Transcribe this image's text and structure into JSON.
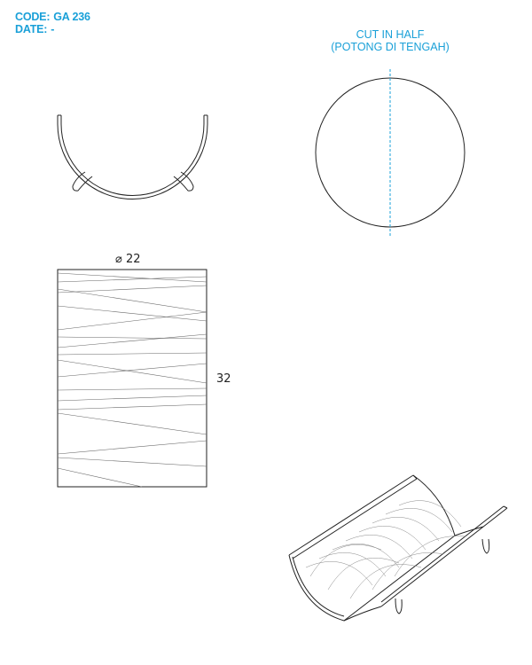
{
  "header": {
    "code_label": "CODE:",
    "code_value": "GA 236",
    "date_label": "DATE:",
    "date_value": "-"
  },
  "note": {
    "line1": "CUT IN HALF",
    "line2": "(POTONG DI TENGAH)"
  },
  "dimensions": {
    "diameter": "⌀ 22",
    "height": "32"
  },
  "colors": {
    "annotation": "#1aa0d8",
    "line": "#222222"
  }
}
